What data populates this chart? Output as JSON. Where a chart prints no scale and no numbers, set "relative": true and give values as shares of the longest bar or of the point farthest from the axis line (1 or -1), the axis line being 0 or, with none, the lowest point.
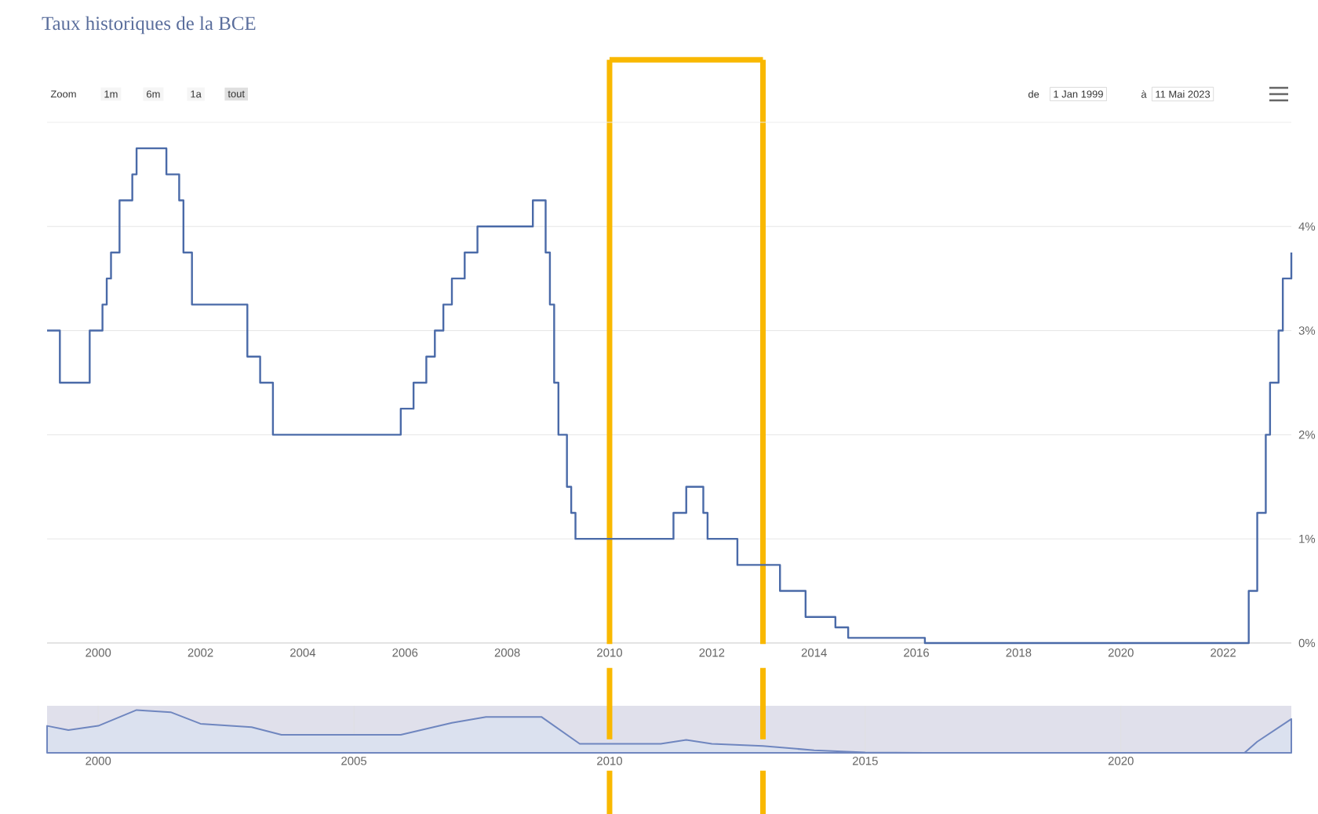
{
  "chart_data": [
    {
      "type": "step",
      "title": "Taux historiques de la BCE",
      "color": "#4a6aa8",
      "grid": "y",
      "annotations": [
        "Zoom",
        "1m",
        "6m",
        "1a",
        "tout",
        "de",
        "1 Jan 1999",
        "à",
        "11 Mai 2023"
      ],
      "x": [
        "1999-01",
        "1999-04",
        "1999-11",
        "2000-02",
        "2000-03",
        "2000-04",
        "2000-06",
        "2000-09",
        "2000-10",
        "2001-05",
        "2001-08",
        "2001-09",
        "2001-11",
        "2002-12",
        "2003-03",
        "2003-06",
        "2005-12",
        "2006-03",
        "2006-06",
        "2006-08",
        "2006-10",
        "2006-12",
        "2007-03",
        "2007-06",
        "2008-07",
        "2008-10",
        "2008-11",
        "2008-12",
        "2009-01",
        "2009-03",
        "2009-04",
        "2009-05",
        "2011-04",
        "2011-07",
        "2011-11",
        "2011-12",
        "2012-07",
        "2013-05",
        "2013-11",
        "2014-06",
        "2014-09",
        "2016-03",
        "2022-07",
        "2022-09",
        "2022-11",
        "2022-12",
        "2023-02",
        "2023-03",
        "2023-05"
      ],
      "values": [
        3.0,
        2.5,
        3.0,
        3.25,
        3.5,
        3.75,
        4.25,
        4.5,
        4.75,
        4.5,
        4.25,
        3.75,
        3.25,
        2.75,
        2.5,
        2.0,
        2.25,
        2.5,
        2.75,
        3.0,
        3.25,
        3.5,
        3.75,
        4.0,
        4.25,
        3.75,
        3.25,
        2.5,
        2.0,
        1.5,
        1.25,
        1.0,
        1.25,
        1.5,
        1.25,
        1.0,
        0.75,
        0.5,
        0.25,
        0.15,
        0.05,
        0.0,
        0.5,
        1.25,
        2.0,
        2.5,
        3.0,
        3.5,
        3.75
      ],
      "xlim": [
        "1999-01",
        "2023-05"
      ],
      "xticks": [
        "2000",
        "2002",
        "2004",
        "2006",
        "2008",
        "2010",
        "2012",
        "2014",
        "2016",
        "2018",
        "2020",
        "2022"
      ],
      "ylim": [
        0,
        5
      ],
      "yticks": [
        {
          "value": 0,
          "label": "0%"
        },
        {
          "value": 1,
          "label": "1%"
        },
        {
          "value": 2,
          "label": "2%"
        },
        {
          "value": 3,
          "label": "3%"
        },
        {
          "value": 4,
          "label": "4%"
        }
      ],
      "ref_lines": [
        {
          "axis": "x",
          "value": "2010-01",
          "color": "#f9b800"
        },
        {
          "axis": "x",
          "value": "2013-01",
          "color": "#f9b800"
        }
      ]
    },
    {
      "type": "area",
      "relative": true,
      "color": "#6f86bf",
      "grid": "x",
      "tick_labels": "x",
      "x": [
        "1999-01",
        "1999-06",
        "2000-01",
        "2000-10",
        "2001-06",
        "2002-01",
        "2003-01",
        "2003-08",
        "2005-12",
        "2006-12",
        "2007-08",
        "2008-09",
        "2009-06",
        "2011-01",
        "2011-07",
        "2012-01",
        "2013-01",
        "2014-01",
        "2015-01",
        "2016-03",
        "2022-06",
        "2022-09",
        "2023-05"
      ],
      "values": [
        0.63,
        0.53,
        0.63,
        1.0,
        0.95,
        0.68,
        0.6,
        0.42,
        0.42,
        0.7,
        0.84,
        0.84,
        0.21,
        0.21,
        0.3,
        0.21,
        0.16,
        0.06,
        0.01,
        0.0,
        0.0,
        0.26,
        0.79
      ],
      "xlim": [
        "1999-01",
        "2023-05"
      ],
      "xticks": [
        "2000",
        "2005",
        "2010",
        "2015",
        "2020"
      ]
    }
  ]
}
